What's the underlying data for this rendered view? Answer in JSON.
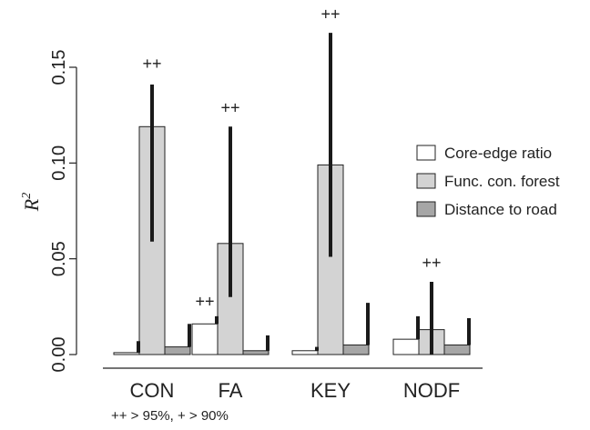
{
  "chart_data": {
    "type": "bar",
    "ylabel": "R",
    "ylabel_superscript": "2",
    "ylim": [
      0,
      0.17
    ],
    "yticks": [
      0.0,
      0.05,
      0.1,
      0.15
    ],
    "ytick_labels": [
      "0.00",
      "0.05",
      "0.10",
      "0.15"
    ],
    "categories": [
      "CON",
      "FA",
      "KEY",
      "NODF"
    ],
    "series": [
      {
        "name": "Core-edge ratio",
        "color": "#ffffff",
        "values": [
          0.001,
          0.016,
          0.002,
          0.008
        ],
        "error_upper": [
          0.007,
          0.02,
          0.004,
          0.02
        ]
      },
      {
        "name": "Func. con. forest",
        "color": "#d3d3d3",
        "values": [
          0.119,
          0.058,
          0.099,
          0.013
        ],
        "error_lower": [
          0.059,
          0.03,
          0.051,
          0.0
        ],
        "error_upper": [
          0.141,
          0.119,
          0.168,
          0.038
        ]
      },
      {
        "name": "Distance to road",
        "color": "#a6a6a6",
        "values": [
          0.004,
          0.002,
          0.005,
          0.005
        ],
        "error_upper": [
          0.016,
          0.01,
          0.027,
          0.019
        ]
      }
    ],
    "annotations": [
      {
        "category": "CON",
        "series": "Func. con. forest",
        "text": "++",
        "y": 0.149
      },
      {
        "category": "FA",
        "series": "Func. con. forest",
        "text": "++",
        "y": 0.126
      },
      {
        "category": "FA",
        "series": "Core-edge ratio",
        "text": "++",
        "y": 0.025
      },
      {
        "category": "KEY",
        "series": "Func. con. forest",
        "text": "++",
        "y": 0.175
      },
      {
        "category": "NODF",
        "series": "Func. con. forest",
        "text": "++",
        "y": 0.045
      }
    ],
    "legend_position": "right",
    "footnote": "++ > 95%, + > 90%"
  }
}
